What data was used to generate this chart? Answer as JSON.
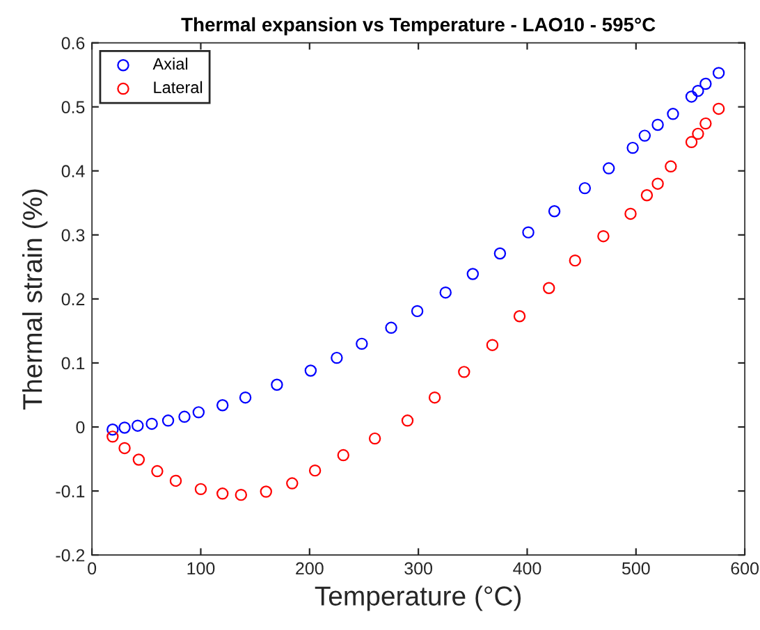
{
  "chart_data": {
    "type": "scatter",
    "title": "Thermal expansion vs Temperature - LAO10 - 595°C",
    "xlabel": "Temperature (°C)",
    "ylabel": "Thermal strain (%)",
    "xlim": [
      0,
      600
    ],
    "xticks": [
      0,
      100,
      200,
      300,
      400,
      500,
      600
    ],
    "ylim": [
      -0.2,
      0.6
    ],
    "yticks": [
      -0.2,
      -0.1,
      0,
      0.1,
      0.2,
      0.3,
      0.4,
      0.5,
      0.6
    ],
    "grid": false,
    "legend": "top left",
    "marker": "circle",
    "series": [
      {
        "name": "Axial",
        "color": "#0000ff",
        "x": [
          19,
          30,
          42,
          55,
          70,
          85,
          98,
          120,
          141,
          170,
          201,
          225,
          248,
          275,
          299,
          325,
          350,
          375,
          401,
          425,
          453,
          475,
          497,
          508,
          520,
          534,
          551,
          557,
          564,
          576
        ],
        "values": [
          -0.004,
          -0.001,
          0.002,
          0.005,
          0.01,
          0.016,
          0.023,
          0.034,
          0.046,
          0.066,
          0.088,
          0.108,
          0.13,
          0.155,
          0.181,
          0.21,
          0.239,
          0.271,
          0.304,
          0.337,
          0.373,
          0.404,
          0.436,
          0.455,
          0.472,
          0.489,
          0.516,
          0.525,
          0.536,
          0.553
        ]
      },
      {
        "name": "Lateral",
        "color": "#ff0000",
        "x": [
          19,
          30,
          43,
          60,
          77,
          100,
          120,
          137,
          160,
          184,
          205,
          231,
          260,
          290,
          315,
          342,
          368,
          393,
          420,
          444,
          470,
          495,
          510,
          520,
          532,
          551,
          557,
          564,
          576
        ],
        "values": [
          -0.015,
          -0.033,
          -0.051,
          -0.069,
          -0.084,
          -0.097,
          -0.104,
          -0.106,
          -0.101,
          -0.088,
          -0.068,
          -0.044,
          -0.018,
          0.01,
          0.046,
          0.086,
          0.128,
          0.173,
          0.217,
          0.26,
          0.298,
          0.333,
          0.362,
          0.38,
          0.407,
          0.445,
          0.458,
          0.474,
          0.497
        ]
      }
    ]
  }
}
